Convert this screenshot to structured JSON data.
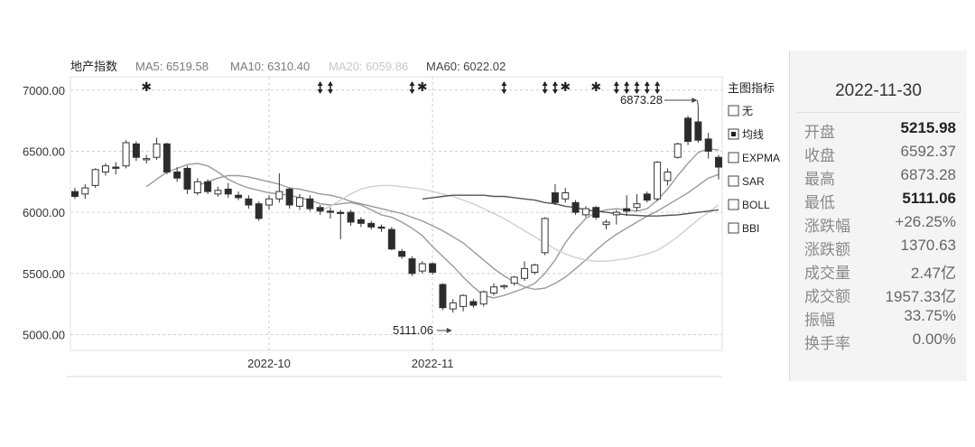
{
  "chart_data": {
    "type": "candlestick",
    "title": "地产指数",
    "ma_labels": [
      {
        "name": "MA5",
        "text": "MA5: 6519.58",
        "color": "#7a7a7a"
      },
      {
        "name": "MA10",
        "text": "MA10: 6310.40",
        "color": "#7a7a7a"
      },
      {
        "name": "MA20",
        "text": "MA20: 6059.86",
        "color": "#c8c8c8"
      },
      {
        "name": "MA60",
        "text": "MA60: 6022.02",
        "color": "#444444"
      }
    ],
    "y_ticks": [
      "7000.00",
      "6500.00",
      "6000.00",
      "5500.00",
      "5000.00"
    ],
    "y_tick_values": [
      7000,
      6500,
      6000,
      5500,
      5000
    ],
    "ylim": [
      4930,
      7050
    ],
    "x_ticks": [
      {
        "label": "2022-10",
        "index": 19
      },
      {
        "label": "2022-11",
        "index": 35
      }
    ],
    "candles": [
      [
        6170,
        6130,
        6200,
        6110
      ],
      [
        6150,
        6200,
        6230,
        6110
      ],
      [
        6220,
        6350,
        6360,
        6200
      ],
      [
        6330,
        6380,
        6400,
        6300
      ],
      [
        6370,
        6360,
        6410,
        6310
      ],
      [
        6380,
        6570,
        6590,
        6360
      ],
      [
        6560,
        6450,
        6580,
        6420
      ],
      [
        6430,
        6440,
        6470,
        6400
      ],
      [
        6450,
        6560,
        6610,
        6430
      ],
      [
        6560,
        6330,
        6570,
        6310
      ],
      [
        6330,
        6280,
        6370,
        6250
      ],
      [
        6360,
        6190,
        6380,
        6150
      ],
      [
        6160,
        6250,
        6280,
        6140
      ],
      [
        6250,
        6170,
        6270,
        6150
      ],
      [
        6150,
        6180,
        6210,
        6130
      ],
      [
        6190,
        6150,
        6240,
        6120
      ],
      [
        6140,
        6120,
        6170,
        6100
      ],
      [
        6110,
        6060,
        6140,
        6030
      ],
      [
        6070,
        5950,
        6090,
        5930
      ],
      [
        6060,
        6110,
        6140,
        6020
      ],
      [
        6110,
        6170,
        6320,
        6080
      ],
      [
        6190,
        6060,
        6200,
        6030
      ],
      [
        6050,
        6120,
        6150,
        6020
      ],
      [
        6110,
        6030,
        6140,
        6010
      ],
      [
        6040,
        6010,
        6060,
        5980
      ],
      [
        6010,
        6000,
        6040,
        5950
      ],
      [
        6000,
        5990,
        6020,
        5780
      ],
      [
        6000,
        5920,
        6020,
        5890
      ],
      [
        5940,
        5910,
        5960,
        5880
      ],
      [
        5910,
        5880,
        5930,
        5860
      ],
      [
        5880,
        5870,
        5900,
        5840
      ],
      [
        5860,
        5700,
        5880,
        5690
      ],
      [
        5680,
        5640,
        5700,
        5620
      ],
      [
        5620,
        5500,
        5640,
        5480
      ],
      [
        5520,
        5580,
        5600,
        5500
      ],
      [
        5580,
        5510,
        5590,
        5490
      ],
      [
        5410,
        5220,
        5420,
        5200
      ],
      [
        5210,
        5260,
        5290,
        5180
      ],
      [
        5230,
        5320,
        5330,
        5190
      ],
      [
        5270,
        5240,
        5290,
        5220
      ],
      [
        5250,
        5350,
        5360,
        5230
      ],
      [
        5340,
        5390,
        5420,
        5320
      ],
      [
        5390,
        5400,
        5410,
        5370
      ],
      [
        5420,
        5470,
        5480,
        5400
      ],
      [
        5460,
        5540,
        5600,
        5440
      ],
      [
        5510,
        5570,
        5580,
        5490
      ],
      [
        5670,
        5950,
        5960,
        5650
      ],
      [
        6160,
        6080,
        6230,
        6060
      ],
      [
        6110,
        6160,
        6200,
        6080
      ],
      [
        6080,
        6000,
        6100,
        5980
      ],
      [
        5980,
        6030,
        6050,
        5960
      ],
      [
        6040,
        5960,
        6050,
        5940
      ],
      [
        5900,
        5920,
        5940,
        5860
      ],
      [
        5980,
        6000,
        6020,
        5900
      ],
      [
        6030,
        6010,
        6140,
        5970
      ],
      [
        6040,
        6070,
        6150,
        6010
      ],
      [
        6150,
        6100,
        6170,
        6080
      ],
      [
        6110,
        6410,
        6420,
        6090
      ],
      [
        6260,
        6330,
        6360,
        6220
      ],
      [
        6450,
        6560,
        6570,
        6440
      ],
      [
        6770,
        6580,
        6790,
        6550
      ],
      [
        6740,
        6590,
        6870,
        6570
      ],
      [
        6600,
        6500,
        6650,
        6440
      ],
      [
        6450,
        6370,
        6470,
        6270
      ]
    ],
    "ma_series": [
      {
        "name": "MA5",
        "color": "#9a9a9a",
        "values": [
          6210,
          6270,
          6330,
          6360,
          6390,
          6400,
          6380,
          6330,
          6270,
          6230,
          6200,
          6180,
          6160,
          6150,
          6140,
          6120,
          6100,
          6070,
          6060,
          6070,
          6080,
          6060,
          6020,
          5980,
          5960,
          5920,
          5870,
          5810,
          5720,
          5640,
          5560,
          5470,
          5390,
          5320,
          5300,
          5320,
          5350,
          5380,
          5420,
          5500,
          5610,
          5750,
          5860,
          5950,
          6000,
          6020,
          6030,
          6020,
          6010,
          6030,
          6100,
          6190,
          6300,
          6400,
          6490,
          6520,
          6510
        ]
      },
      {
        "name": "MA10",
        "color": "#9a9a9a",
        "values": [
          6220,
          6250,
          6280,
          6300,
          6300,
          6290,
          6270,
          6250,
          6230,
          6200,
          6190,
          6170,
          6150,
          6140,
          6120,
          6090,
          6070,
          6050,
          6030,
          6010,
          5990,
          5960,
          5930,
          5890,
          5850,
          5800,
          5750,
          5680,
          5610,
          5540,
          5480,
          5430,
          5390,
          5370,
          5380,
          5420,
          5470,
          5540,
          5610,
          5690,
          5760,
          5820,
          5870,
          5920,
          5970,
          6010,
          6060,
          6110,
          6160,
          6220,
          6280,
          6310
        ]
      },
      {
        "name": "MA20",
        "color": "#d0d0d0",
        "values": [
          6010,
          6050,
          6100,
          6150,
          6190,
          6210,
          6220,
          6220,
          6210,
          6200,
          6190,
          6170,
          6150,
          6130,
          6100,
          6070,
          6030,
          5990,
          5950,
          5900,
          5850,
          5800,
          5750,
          5700,
          5660,
          5630,
          5610,
          5600,
          5600,
          5610,
          5620,
          5640,
          5660,
          5690,
          5740,
          5800,
          5870,
          5940,
          6000,
          6060
        ]
      },
      {
        "name": "MA60",
        "color": "#555555",
        "values": [
          6110,
          6120,
          6130,
          6140,
          6140,
          6140,
          6140,
          6130,
          6130,
          6120,
          6110,
          6100,
          6080,
          6070,
          6050,
          6040,
          6020,
          6010,
          6000,
          5990,
          5980,
          5975,
          5970,
          5970,
          5975,
          5980,
          5990,
          6000,
          6010,
          6020
        ]
      }
    ],
    "high_annotation": "6873.28",
    "low_annotation": "5111.06",
    "marker_rows": {
      "star_indices": [
        7,
        34,
        48,
        51
      ],
      "updown_indices": [
        24,
        25,
        33,
        42,
        46,
        47,
        53,
        54,
        55,
        56,
        57
      ]
    },
    "indicator_menu": {
      "title": "主图指标",
      "items": [
        {
          "label": "无",
          "checked": false
        },
        {
          "label": "均线",
          "checked": true
        },
        {
          "label": "EXPMA",
          "checked": false
        },
        {
          "label": "SAR",
          "checked": false
        },
        {
          "label": "BOLL",
          "checked": false
        },
        {
          "label": "BBI",
          "checked": false
        }
      ]
    }
  },
  "info_panel": {
    "date": "2022-11-30",
    "rows": [
      {
        "label": "开盘",
        "value": "5215.98",
        "bold": true
      },
      {
        "label": "收盘",
        "value": "6592.37",
        "bold": false
      },
      {
        "label": "最高",
        "value": "6873.28",
        "bold": false
      },
      {
        "label": "最低",
        "value": "5111.06",
        "bold": true
      },
      {
        "label": "涨跌幅",
        "value": "+26.25%",
        "bold": false
      },
      {
        "label": "涨跌额",
        "value": "1370.63",
        "bold": false
      },
      {
        "label": "成交量",
        "value": "2.47亿",
        "bold": false
      },
      {
        "label": "成交额",
        "value": "1957.33亿",
        "bold": false
      },
      {
        "label": "振幅",
        "value": "33.75%",
        "bold": false
      },
      {
        "label": "换手率",
        "value": "0.00%",
        "bold": false
      }
    ]
  }
}
